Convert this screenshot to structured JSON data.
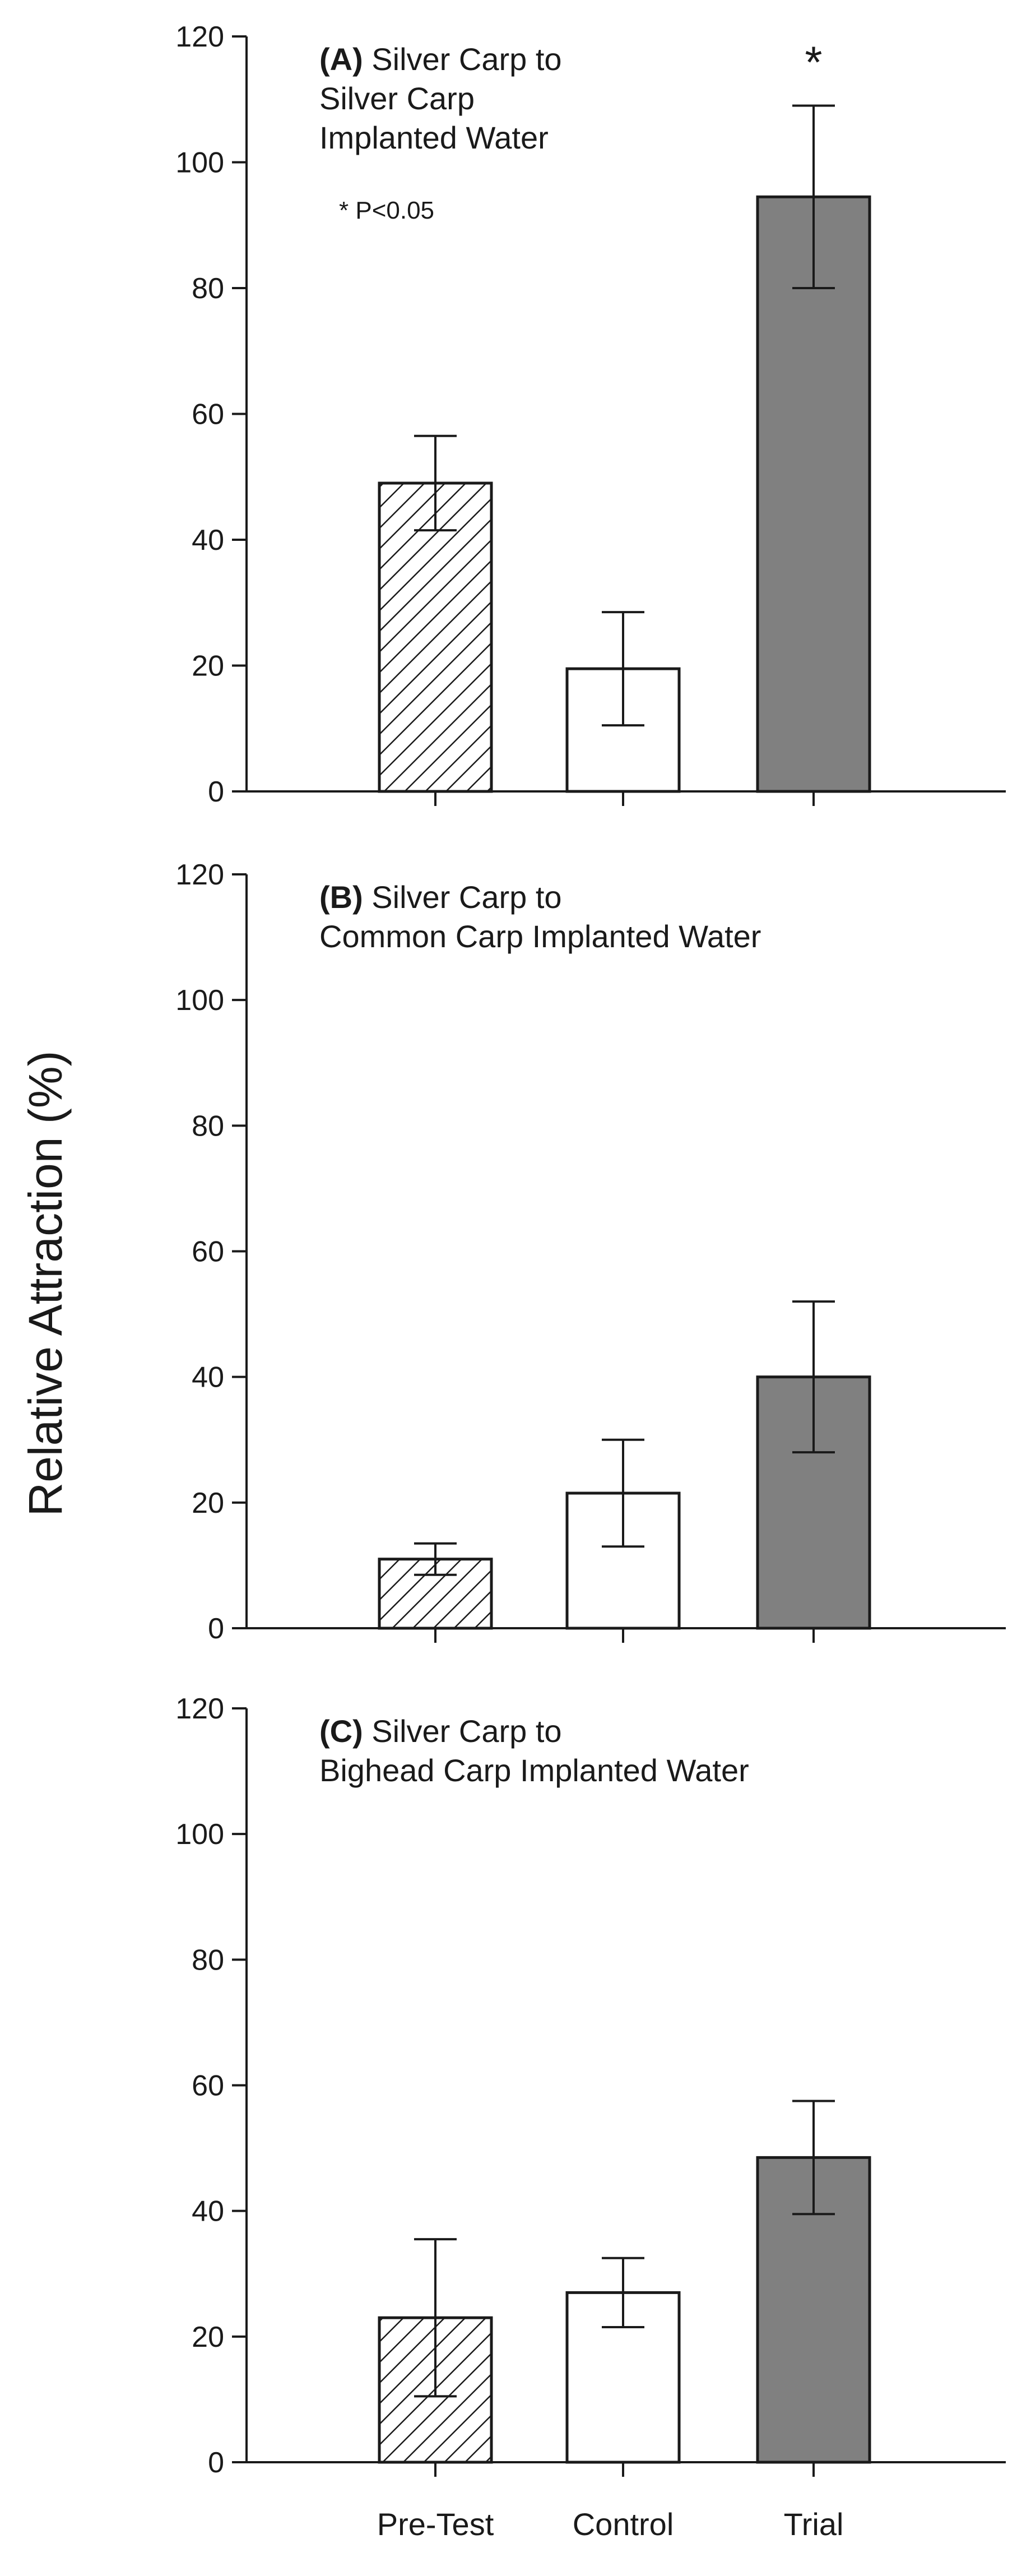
{
  "ylabel": "Relative Attraction (%)",
  "note": "* P<0.05",
  "colors": {
    "axis": "#1a1a1a",
    "pretest_hatch": "#1a1a1a",
    "control_fill": "#ffffff",
    "trial_fill": "#808080"
  },
  "chart_data": [
    {
      "type": "bar",
      "panel": "A",
      "title": [
        "Silver Carp to",
        "Silver Carp",
        "Implanted Water"
      ],
      "categories": [
        "Pre-Test",
        "Control",
        "Trial"
      ],
      "values": [
        49,
        19.5,
        94.5
      ],
      "errors": [
        7.5,
        9,
        14.5
      ],
      "significance": [
        "",
        "",
        "*"
      ],
      "ylim": [
        0,
        120
      ],
      "yticks": [
        0,
        20,
        40,
        60,
        80,
        100,
        120
      ]
    },
    {
      "type": "bar",
      "panel": "B",
      "title": [
        "Silver Carp to",
        "Common Carp Implanted Water"
      ],
      "categories": [
        "Pre-Test",
        "Control",
        "Trial"
      ],
      "values": [
        11,
        21.5,
        40
      ],
      "errors": [
        2.5,
        8.5,
        12
      ],
      "significance": [
        "",
        "",
        ""
      ],
      "ylim": [
        0,
        120
      ],
      "yticks": [
        0,
        20,
        40,
        60,
        80,
        100,
        120
      ]
    },
    {
      "type": "bar",
      "panel": "C",
      "title": [
        "Silver Carp to",
        "Bighead Carp Implanted Water"
      ],
      "categories": [
        "Pre-Test",
        "Control",
        "Trial"
      ],
      "values": [
        23,
        27,
        48.5
      ],
      "errors": [
        12.5,
        5.5,
        9
      ],
      "significance": [
        "",
        "",
        ""
      ],
      "ylim": [
        0,
        120
      ],
      "yticks": [
        0,
        20,
        40,
        60,
        80,
        100,
        120
      ]
    }
  ]
}
